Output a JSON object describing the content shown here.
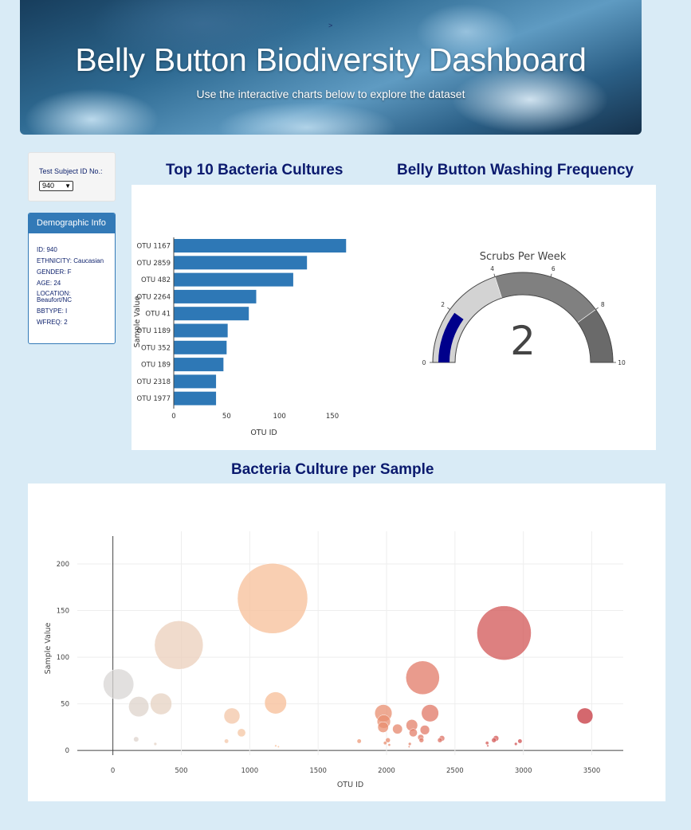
{
  "header": {
    "arrow": ">",
    "title": "Belly Button Biodiversity Dashboard",
    "subtitle": "Use the interactive charts below to explore the dataset"
  },
  "selector": {
    "label": "Test Subject ID No.:",
    "value": "940"
  },
  "demographics": {
    "heading": "Demographic Info",
    "rows": [
      "ID: 940",
      "ETHNICITY: Caucasian",
      "GENDER: F",
      "AGE: 24",
      "LOCATION: Beaufort/NC",
      "BBTYPE: I",
      "WFREQ: 2"
    ]
  },
  "titles": {
    "bar": "Top 10 Bacteria Cultures",
    "gauge": "Belly Button Washing Frequency",
    "bubble": "Bacteria Culture per Sample"
  },
  "chart_data": [
    {
      "type": "bar",
      "orientation": "horizontal",
      "categories": [
        "OTU 1167",
        "OTU 2859",
        "OTU 482",
        "OTU 2264",
        "OTU 41",
        "OTU 1189",
        "OTU 352",
        "OTU 189",
        "OTU 2318",
        "OTU 1977"
      ],
      "values": [
        163,
        126,
        113,
        78,
        71,
        51,
        50,
        47,
        40,
        40
      ],
      "xlabel": "OTU ID",
      "ylabel": "Sample Value",
      "xticks": [
        0,
        50,
        100,
        150
      ],
      "xlim": [
        0,
        180
      ],
      "color": "#2e78b6",
      "grid": false
    },
    {
      "type": "gauge",
      "title": "Scrubs Per Week",
      "value": 2,
      "range": [
        0,
        10
      ],
      "ticks": [
        0,
        2,
        4,
        6,
        8,
        10
      ],
      "steps": [
        {
          "range": [
            0,
            4
          ],
          "color": "#d3d3d3"
        },
        {
          "range": [
            4,
            8
          ],
          "color": "#808080"
        },
        {
          "range": [
            8,
            10
          ],
          "color": "#6a6a6a"
        }
      ],
      "bar_color": "#00008b"
    },
    {
      "type": "scatter",
      "mode": "bubble",
      "xlabel": "OTU ID",
      "ylabel": "Sample Value",
      "xticks": [
        0,
        500,
        1000,
        1500,
        2000,
        2500,
        3000,
        3500
      ],
      "yticks": [
        0,
        50,
        100,
        150,
        200
      ],
      "xlim": [
        -260,
        3730
      ],
      "ylim": [
        -5,
        235
      ],
      "grid": true,
      "colorscale": "earth-like (grey to peach to red by OTU ID)",
      "points": [
        {
          "x": 41,
          "y": 71
        },
        {
          "x": 189,
          "y": 47
        },
        {
          "x": 352,
          "y": 50
        },
        {
          "x": 482,
          "y": 113
        },
        {
          "x": 1167,
          "y": 163
        },
        {
          "x": 1189,
          "y": 51
        },
        {
          "x": 2264,
          "y": 78
        },
        {
          "x": 2859,
          "y": 126
        },
        {
          "x": 3450,
          "y": 37
        },
        {
          "x": 870,
          "y": 37
        },
        {
          "x": 940,
          "y": 19
        },
        {
          "x": 1977,
          "y": 40
        },
        {
          "x": 1980,
          "y": 31
        },
        {
          "x": 1975,
          "y": 25
        },
        {
          "x": 2318,
          "y": 40
        },
        {
          "x": 2185,
          "y": 27
        },
        {
          "x": 2080,
          "y": 23
        },
        {
          "x": 2195,
          "y": 19
        },
        {
          "x": 2280,
          "y": 22
        },
        {
          "x": 2250,
          "y": 14
        },
        {
          "x": 2010,
          "y": 11
        },
        {
          "x": 2255,
          "y": 11
        },
        {
          "x": 2405,
          "y": 13
        },
        {
          "x": 2390,
          "y": 11
        },
        {
          "x": 2800,
          "y": 13
        },
        {
          "x": 2785,
          "y": 11
        },
        {
          "x": 2975,
          "y": 10
        },
        {
          "x": 2735,
          "y": 8
        },
        {
          "x": 2945,
          "y": 7
        },
        {
          "x": 170,
          "y": 12
        },
        {
          "x": 310,
          "y": 7
        },
        {
          "x": 830,
          "y": 10
        },
        {
          "x": 1800,
          "y": 10
        },
        {
          "x": 1990,
          "y": 8
        },
        {
          "x": 2170,
          "y": 7
        },
        {
          "x": 2740,
          "y": 5
        },
        {
          "x": 1190,
          "y": 5
        },
        {
          "x": 1210,
          "y": 4
        },
        {
          "x": 2020,
          "y": 6
        },
        {
          "x": 2165,
          "y": 4
        }
      ]
    }
  ]
}
